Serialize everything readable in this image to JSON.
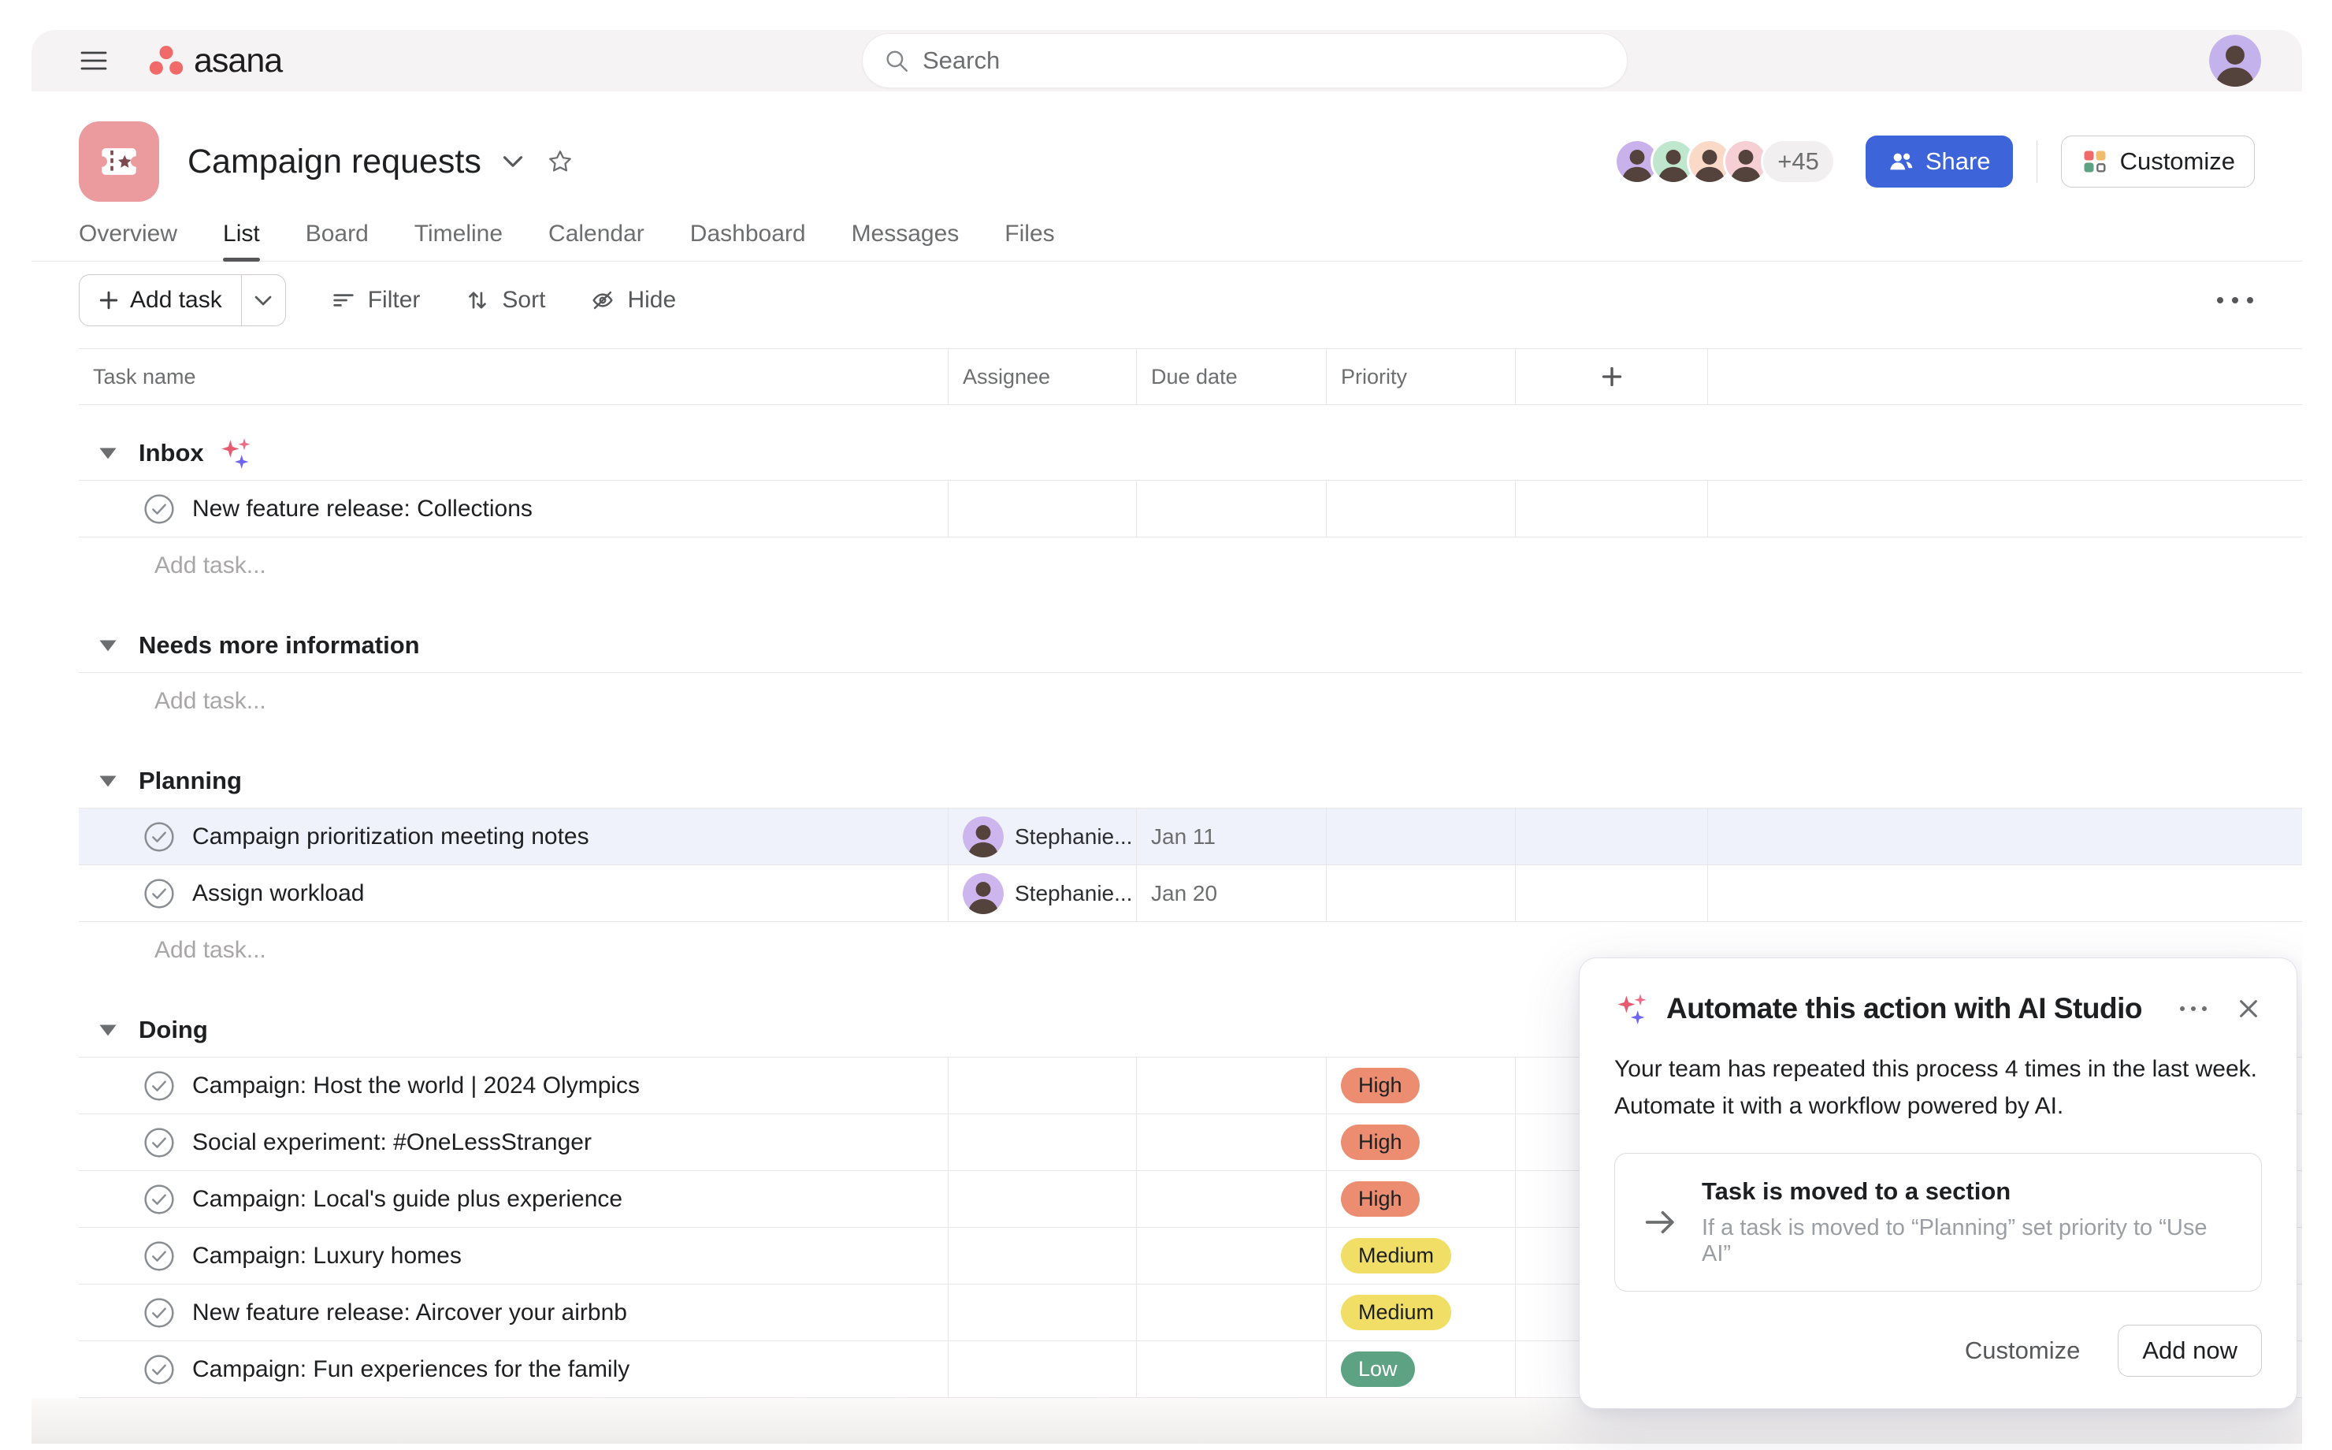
{
  "brand": {
    "logo_text": "asana"
  },
  "topbar": {
    "search_placeholder": "Search"
  },
  "project": {
    "title": "Campaign requests",
    "members_overflow": "+45",
    "share_label": "Share",
    "customize_label": "Customize"
  },
  "tabs": [
    {
      "label": "Overview",
      "active": false
    },
    {
      "label": "List",
      "active": true
    },
    {
      "label": "Board",
      "active": false
    },
    {
      "label": "Timeline",
      "active": false
    },
    {
      "label": "Calendar",
      "active": false
    },
    {
      "label": "Dashboard",
      "active": false
    },
    {
      "label": "Messages",
      "active": false
    },
    {
      "label": "Files",
      "active": false
    }
  ],
  "toolbar": {
    "add_task_label": "Add task",
    "filter_label": "Filter",
    "sort_label": "Sort",
    "hide_label": "Hide"
  },
  "table": {
    "columns": [
      "Task name",
      "Assignee",
      "Due date",
      "Priority"
    ]
  },
  "sections": [
    {
      "name": "Inbox",
      "ai_sparkle": true,
      "add_task_label": "Add task...",
      "tasks": [
        {
          "title": "New feature release: Collections"
        }
      ]
    },
    {
      "name": "Needs more information",
      "add_task_label": "Add task...",
      "tasks": []
    },
    {
      "name": "Planning",
      "add_task_label": "Add task...",
      "tasks": [
        {
          "title": "Campaign prioritization meeting notes",
          "assignee": "Stephanie...",
          "due_date": "Jan 11",
          "highlighted": true
        },
        {
          "title": "Assign workload",
          "assignee": "Stephanie...",
          "due_date": "Jan 20"
        }
      ]
    },
    {
      "name": "Doing",
      "tasks": [
        {
          "title": "Campaign: Host the world | 2024 Olympics",
          "priority": "High"
        },
        {
          "title": "Social experiment: #OneLessStranger",
          "priority": "High"
        },
        {
          "title": "Campaign: Local's guide plus experience",
          "priority": "High"
        },
        {
          "title": "Campaign: Luxury homes",
          "priority": "Medium"
        },
        {
          "title": "New feature release: Aircover your airbnb",
          "priority": "Medium"
        },
        {
          "title": "Campaign: Fun experiences for the family",
          "priority": "Low"
        }
      ]
    }
  ],
  "popup": {
    "title": "Automate this action with AI Studio",
    "body": "Your team has repeated this process 4 times in the last week. Automate it with a workflow powered by AI.",
    "rule_title": "Task is moved to a section",
    "rule_description": "If a task is moved to “Planning” set priority to “Use AI”",
    "customize_label": "Customize",
    "add_now_label": "Add now"
  },
  "colors": {
    "accent_coral": "#f06a6a",
    "share_button": "#3d64d9",
    "project_icon_bg": "#eb9b9e",
    "highlight_row": "#eff1fb",
    "priority": {
      "High": {
        "bg": "#ec8d71",
        "text": "#1e1f21"
      },
      "Medium": {
        "bg": "#f1de67",
        "text": "#1e1f21"
      },
      "Low": {
        "bg": "#5da283",
        "text": "#ffffff"
      }
    },
    "member_avatars": [
      "#c9b2ec",
      "#bfe7cd",
      "#fbd9c7",
      "#f6cfd4"
    ],
    "assignee_avatar": "#cdb6ee",
    "user_avatar": "#c4b2ec"
  }
}
